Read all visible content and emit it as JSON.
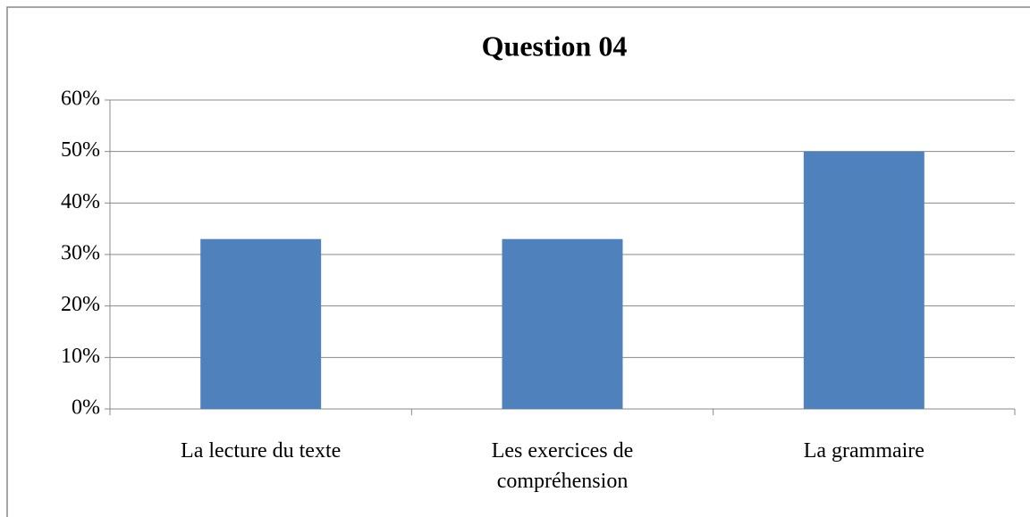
{
  "chart_data": {
    "type": "bar",
    "title": "Question 04",
    "categories": [
      "La lecture du texte",
      "Les exercices de compréhension",
      "La grammaire"
    ],
    "values": [
      33,
      33,
      50
    ],
    "color": "#4f81bd",
    "ylim": [
      0,
      60
    ],
    "yticks": [
      {
        "value": 0,
        "label": "0%"
      },
      {
        "value": 10,
        "label": "10%"
      },
      {
        "value": 20,
        "label": "20%"
      },
      {
        "value": 30,
        "label": "30%"
      },
      {
        "value": 40,
        "label": "40%"
      },
      {
        "value": 50,
        "label": "50%"
      },
      {
        "value": 60,
        "label": "60%"
      }
    ],
    "grid": true
  }
}
